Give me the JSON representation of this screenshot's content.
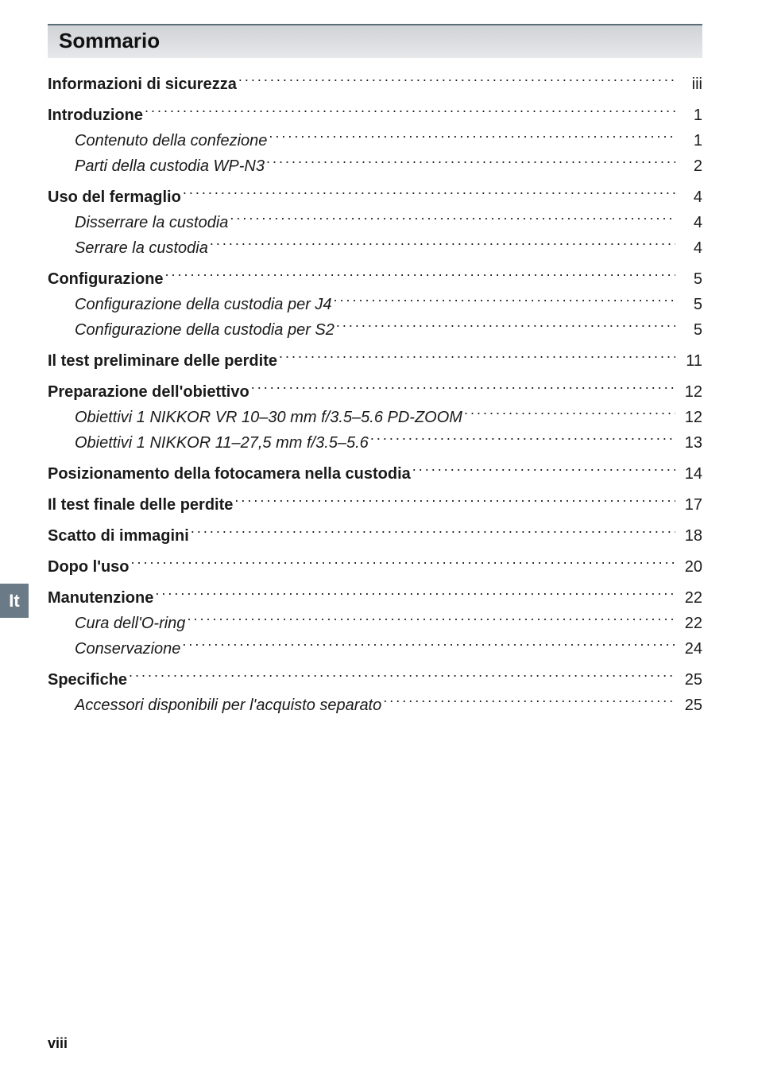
{
  "heading": "Sommario",
  "side_tab": "It",
  "page_number_label": "viii",
  "colors": {
    "tab_bg": "#6a7b87",
    "tab_fg": "#ffffff",
    "bar_border": "#5b6c79",
    "bar_bg_top": "#d0d3d6",
    "bar_bg_bot": "#e6e8ea",
    "text": "#1a1a1a",
    "page_bg": "#ffffff"
  },
  "typography": {
    "heading_fontsize": 26,
    "heading_weight": 800,
    "entry_fontsize": 20,
    "page_num_fontsize": 18,
    "font_family": "Segoe UI / Helvetica Neue / Arial"
  },
  "toc": [
    {
      "level": 0,
      "style": "bold",
      "label": "Informazioni di sicurezza",
      "page": "iii"
    },
    {
      "level": 0,
      "style": "bold",
      "label": "Introduzione",
      "page": "1"
    },
    {
      "level": 1,
      "style": "italic",
      "label": "Contenuto della confezione",
      "page": "1"
    },
    {
      "level": 1,
      "style": "italic",
      "label": "Parti della custodia WP-N3",
      "page": "2"
    },
    {
      "level": 0,
      "style": "bold",
      "label": "Uso del fermaglio",
      "page": "4"
    },
    {
      "level": 1,
      "style": "italic",
      "label": "Disserrare la custodia",
      "page": "4"
    },
    {
      "level": 1,
      "style": "italic",
      "label": "Serrare la custodia",
      "page": "4"
    },
    {
      "level": 0,
      "style": "bold",
      "label": "Configurazione",
      "page": "5"
    },
    {
      "level": 1,
      "style": "italic",
      "label": "Configurazione della custodia per J4",
      "page": "5"
    },
    {
      "level": 1,
      "style": "italic",
      "label": "Configurazione della custodia per S2",
      "page": "5"
    },
    {
      "level": 0,
      "style": "bold",
      "label": "Il test preliminare delle perdite",
      "page": "11"
    },
    {
      "level": 0,
      "style": "bold",
      "label": "Preparazione dell'obiettivo",
      "page": "12"
    },
    {
      "level": 1,
      "style": "italic",
      "label": "Obiettivi 1 NIKKOR VR 10–30 mm f/3.5–5.6 PD-ZOOM",
      "page": "12"
    },
    {
      "level": 1,
      "style": "italic",
      "label": "Obiettivi 1 NIKKOR 11–27,5 mm f/3.5–5.6",
      "page": "13"
    },
    {
      "level": 0,
      "style": "bold",
      "label": "Posizionamento della fotocamera nella custodia",
      "page": "14"
    },
    {
      "level": 0,
      "style": "bold",
      "label": "Il test finale delle perdite",
      "page": "17"
    },
    {
      "level": 0,
      "style": "bold",
      "label": "Scatto di immagini",
      "page": "18"
    },
    {
      "level": 0,
      "style": "bold",
      "label": "Dopo l'uso",
      "page": "20"
    },
    {
      "level": 0,
      "style": "bold",
      "label": "Manutenzione",
      "page": "22"
    },
    {
      "level": 1,
      "style": "italic",
      "label": "Cura dell'O-ring",
      "page": "22"
    },
    {
      "level": 1,
      "style": "italic",
      "label": "Conservazione",
      "page": "24"
    },
    {
      "level": 0,
      "style": "bold",
      "label": "Specifiche",
      "page": "25"
    },
    {
      "level": 1,
      "style": "italic",
      "label": "Accessori disponibili per l'acquisto separato",
      "page": "25"
    }
  ]
}
